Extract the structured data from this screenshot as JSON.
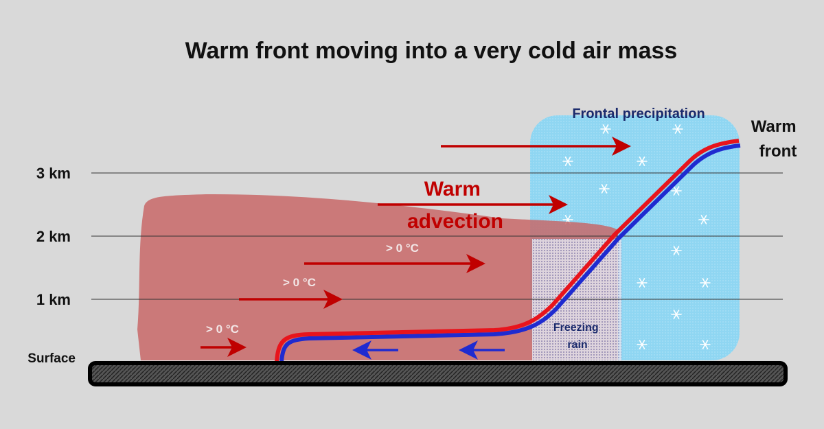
{
  "header": {
    "title": "Warm front moving into a very cold air mass"
  },
  "altitude_labels": [
    "3 km",
    "2 km",
    "1 km",
    "Surface"
  ],
  "labels": {
    "frontal_precipitation": "Frontal precipitation",
    "warm_front": [
      "Warm",
      "front"
    ],
    "warm_advection": [
      "Warm",
      "advection"
    ],
    "above_freezing": [
      "> 0 °C",
      "> 0 °C",
      "> 0 °C"
    ],
    "freezing_rain": [
      "Freezing",
      "rain"
    ]
  }
}
